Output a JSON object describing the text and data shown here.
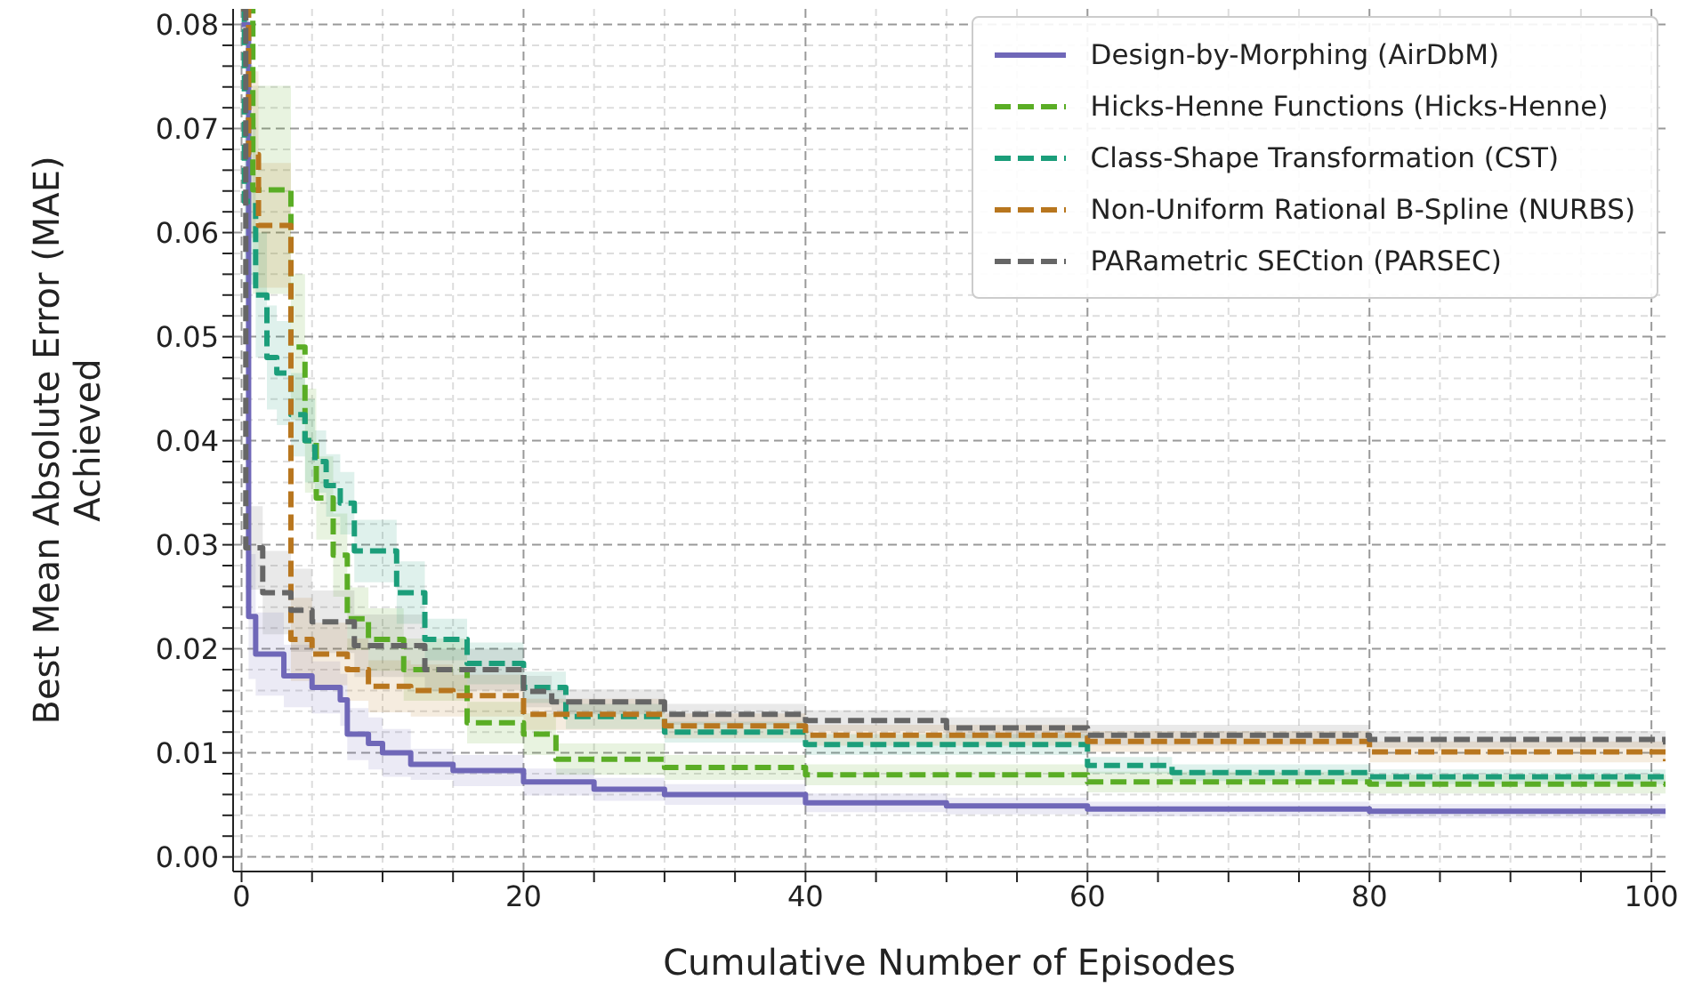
{
  "chart_data": {
    "type": "step",
    "xlabel": "Cumulative Number of Episodes",
    "ylabel": "Best Mean Absolute Error (MAE) Achieved",
    "xlim": [
      -0.6,
      101
    ],
    "ylim": [
      -0.0014,
      0.0815
    ],
    "xticks": [
      0,
      {
        "value": 5,
        "label": null
      },
      {
        "value": 10,
        "label": null
      },
      {
        "value": 15,
        "label": null
      },
      20,
      {
        "value": 25,
        "label": null
      },
      {
        "value": 30,
        "label": null
      },
      {
        "value": 35,
        "label": null
      },
      40,
      {
        "value": 45,
        "label": null
      },
      {
        "value": 50,
        "label": null
      },
      {
        "value": 55,
        "label": null
      },
      60,
      {
        "value": 65,
        "label": null
      },
      {
        "value": 70,
        "label": null
      },
      {
        "value": 75,
        "label": null
      },
      80,
      {
        "value": 85,
        "label": null
      },
      {
        "value": 90,
        "label": null
      },
      {
        "value": 95,
        "label": null
      },
      100
    ],
    "yticks": [
      {
        "value": 0,
        "label": "0.00"
      },
      {
        "value": 0.002,
        "label": null
      },
      {
        "value": 0.004,
        "label": null
      },
      {
        "value": 0.006,
        "label": null
      },
      {
        "value": 0.008,
        "label": null
      },
      {
        "value": 0.01,
        "label": "0.01"
      },
      {
        "value": 0.012,
        "label": null
      },
      {
        "value": 0.014,
        "label": null
      },
      {
        "value": 0.016,
        "label": null
      },
      {
        "value": 0.018,
        "label": null
      },
      {
        "value": 0.02,
        "label": "0.02"
      },
      {
        "value": 0.022,
        "label": null
      },
      {
        "value": 0.024,
        "label": null
      },
      {
        "value": 0.026,
        "label": null
      },
      {
        "value": 0.028,
        "label": null
      },
      {
        "value": 0.03,
        "label": "0.03"
      },
      {
        "value": 0.032,
        "label": null
      },
      {
        "value": 0.034,
        "label": null
      },
      {
        "value": 0.036,
        "label": null
      },
      {
        "value": 0.038,
        "label": null
      },
      {
        "value": 0.04,
        "label": "0.04"
      },
      {
        "value": 0.042,
        "label": null
      },
      {
        "value": 0.044,
        "label": null
      },
      {
        "value": 0.046,
        "label": null
      },
      {
        "value": 0.048,
        "label": null
      },
      {
        "value": 0.05,
        "label": "0.05"
      },
      {
        "value": 0.052,
        "label": null
      },
      {
        "value": 0.054,
        "label": null
      },
      {
        "value": 0.056,
        "label": null
      },
      {
        "value": 0.058,
        "label": null
      },
      {
        "value": 0.06,
        "label": "0.06"
      },
      {
        "value": 0.062,
        "label": null
      },
      {
        "value": 0.064,
        "label": null
      },
      {
        "value": 0.066,
        "label": null
      },
      {
        "value": 0.068,
        "label": null
      },
      {
        "value": 0.07,
        "label": "0.07"
      },
      {
        "value": 0.072,
        "label": null
      },
      {
        "value": 0.074,
        "label": null
      },
      {
        "value": 0.076,
        "label": null
      },
      {
        "value": 0.078,
        "label": null
      },
      {
        "value": 0.08,
        "label": "0.08"
      }
    ],
    "grid": true,
    "legend": "top right",
    "marker": "none",
    "series": [
      {
        "name": "Design-by-Morphing (AirDbM)",
        "color": "#6f67b8",
        "line_style": "solid",
        "x": [
          0,
          0.5,
          1,
          3,
          5,
          7,
          7.5,
          9,
          10,
          12,
          15,
          20,
          25,
          30,
          40,
          50,
          60,
          80,
          101
        ],
        "values": [
          0.08,
          0.0231,
          0.0195,
          0.0174,
          0.0163,
          0.0151,
          0.0118,
          0.0109,
          0.01,
          0.0089,
          0.0083,
          0.0072,
          0.0065,
          0.006,
          0.0052,
          0.0049,
          0.0046,
          0.0044,
          0.0042
        ],
        "lower": [
          0.08,
          0.0171,
          0.0155,
          0.0144,
          0.0138,
          0.0126,
          0.0093,
          0.0084,
          0.0077,
          0.0074,
          0.0068,
          0.0059,
          0.0054,
          0.005,
          0.0043,
          0.0041,
          0.0039,
          0.0037,
          0.0035
        ],
        "upper": [
          0.08,
          0.0291,
          0.0235,
          0.0204,
          0.0188,
          0.0176,
          0.0143,
          0.0134,
          0.0123,
          0.0104,
          0.0098,
          0.0085,
          0.0076,
          0.007,
          0.0061,
          0.0057,
          0.0053,
          0.0051,
          0.0049
        ]
      },
      {
        "name": "Hicks-Henne Functions (Hicks-Henne)",
        "color": "#5aad25",
        "line_style": "dashed",
        "x": [
          0,
          0.8,
          3.5,
          4.5,
          5.3,
          6.5,
          7.5,
          9,
          11.5,
          16,
          20,
          22.3,
          30,
          40,
          60,
          80,
          101
        ],
        "values": [
          0.0815,
          0.0641,
          0.049,
          0.04,
          0.0345,
          0.029,
          0.0229,
          0.0209,
          0.018,
          0.0129,
          0.0118,
          0.0094,
          0.0086,
          0.0079,
          0.0072,
          0.007,
          0.0069
        ],
        "lower": [
          0.0815,
          0.0541,
          0.042,
          0.035,
          0.0305,
          0.025,
          0.0199,
          0.0179,
          0.015,
          0.0109,
          0.0098,
          0.0079,
          0.0074,
          0.0069,
          0.0062,
          0.0061,
          0.006
        ],
        "upper": [
          0.0815,
          0.0741,
          0.056,
          0.045,
          0.0385,
          0.033,
          0.0259,
          0.0239,
          0.021,
          0.0149,
          0.0138,
          0.0109,
          0.0098,
          0.0089,
          0.0082,
          0.0079,
          0.0078
        ]
      },
      {
        "name": "Class-Shape Transformation (CST)",
        "color": "#1b9e7a",
        "line_style": "dashed",
        "x": [
          0,
          0.2,
          1,
          1.8,
          2.5,
          3.5,
          4.5,
          5.2,
          6,
          7,
          8,
          11,
          13,
          16,
          20,
          23,
          30,
          40,
          60,
          66,
          80,
          101
        ],
        "values": [
          0.0815,
          0.063,
          0.054,
          0.048,
          0.0465,
          0.0425,
          0.04,
          0.038,
          0.0357,
          0.034,
          0.0294,
          0.0254,
          0.0209,
          0.0186,
          0.0163,
          0.0135,
          0.012,
          0.0108,
          0.0088,
          0.0081,
          0.0077,
          0.0072
        ],
        "lower": [
          0.0815,
          0.055,
          0.048,
          0.043,
          0.0415,
          0.0385,
          0.036,
          0.035,
          0.0327,
          0.031,
          0.0264,
          0.0224,
          0.0189,
          0.0166,
          0.0148,
          0.0123,
          0.011,
          0.0098,
          0.008,
          0.0073,
          0.007,
          0.0065
        ],
        "upper": [
          0.0815,
          0.071,
          0.06,
          0.053,
          0.0515,
          0.0465,
          0.044,
          0.041,
          0.0387,
          0.037,
          0.0324,
          0.0284,
          0.0229,
          0.0206,
          0.0178,
          0.0147,
          0.013,
          0.0118,
          0.0096,
          0.0089,
          0.0084,
          0.0079
        ]
      },
      {
        "name": "Non-Uniform Rational B-Spline (NURBS)",
        "color": "#b8761e",
        "line_style": "dashed",
        "x": [
          0,
          0.5,
          1.2,
          3.5,
          5,
          7.5,
          9,
          12,
          15,
          20,
          30,
          40,
          60,
          80,
          101
        ],
        "values": [
          0.0815,
          0.0675,
          0.0607,
          0.0209,
          0.0195,
          0.018,
          0.0164,
          0.016,
          0.0155,
          0.0137,
          0.0126,
          0.0117,
          0.0111,
          0.0101,
          0.0092
        ],
        "lower": [
          0.0815,
          0.0595,
          0.0547,
          0.0169,
          0.0165,
          0.015,
          0.0139,
          0.0135,
          0.0135,
          0.0122,
          0.0114,
          0.0107,
          0.0101,
          0.0091,
          0.0082
        ],
        "upper": [
          0.0815,
          0.0755,
          0.0667,
          0.0249,
          0.0225,
          0.021,
          0.0189,
          0.0185,
          0.0175,
          0.0152,
          0.0138,
          0.0127,
          0.0121,
          0.0111,
          0.0102
        ]
      },
      {
        "name": "PARametric SECtion (PARSEC)",
        "color": "#666666",
        "line_style": "dashed",
        "x": [
          0,
          0.3,
          1.5,
          3.5,
          5,
          8,
          13,
          20,
          22,
          30,
          40,
          50,
          60,
          80,
          101
        ],
        "values": [
          0.0815,
          0.0297,
          0.0254,
          0.0237,
          0.0226,
          0.0203,
          0.018,
          0.0159,
          0.0149,
          0.0137,
          0.0131,
          0.0124,
          0.0117,
          0.0113,
          0.0108
        ],
        "lower": [
          0.0815,
          0.0257,
          0.0214,
          0.0197,
          0.0196,
          0.0173,
          0.016,
          0.0144,
          0.0137,
          0.0127,
          0.0121,
          0.0114,
          0.0107,
          0.0105,
          0.01
        ],
        "upper": [
          0.0815,
          0.0337,
          0.0294,
          0.0277,
          0.0256,
          0.0233,
          0.02,
          0.0174,
          0.0161,
          0.0147,
          0.0141,
          0.0134,
          0.0127,
          0.0121,
          0.0116
        ]
      }
    ]
  }
}
